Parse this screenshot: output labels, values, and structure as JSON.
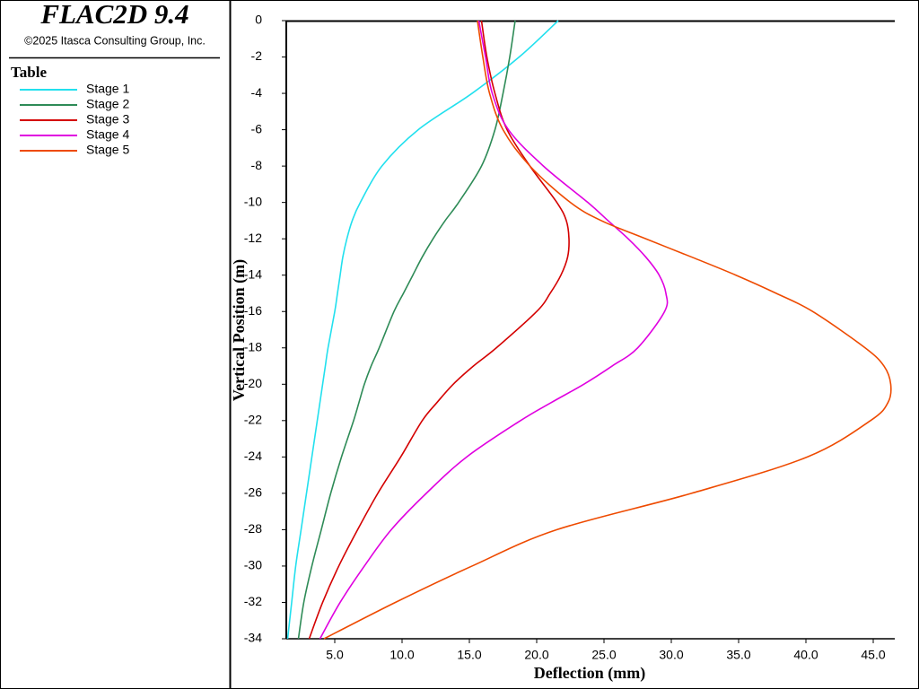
{
  "chart_data": {
    "type": "line",
    "title": "FLAC2D 9.4",
    "subtitle": "©2025 Itasca Consulting Group, Inc.",
    "legend_title": "Table",
    "x_label": "Deflection (mm)",
    "y_label": "Vertical Position (m)",
    "y": [
      0,
      -2,
      -4,
      -6,
      -8,
      -10,
      -11,
      -12,
      -13,
      -14,
      -15,
      -16,
      -18,
      -19,
      -20,
      -21,
      -22,
      -24,
      -26,
      -28,
      -30,
      -32,
      -34
    ],
    "series": [
      {
        "name": "Stage 1",
        "color": "#22e0ee",
        "values": [
          21.6,
          18.7,
          15.2,
          11.2,
          8.5,
          6.9,
          6.3,
          5.9,
          5.6,
          5.4,
          5.2,
          5.0,
          4.5,
          4.3,
          4.1,
          3.9,
          3.7,
          3.3,
          2.9,
          2.5,
          2.1,
          1.8,
          1.5
        ]
      },
      {
        "name": "Stage 2",
        "color": "#2e8b57",
        "values": [
          18.4,
          18.0,
          17.5,
          16.9,
          15.9,
          14.2,
          13.2,
          12.3,
          11.5,
          10.8,
          10.1,
          9.4,
          8.3,
          7.7,
          7.2,
          6.8,
          6.4,
          5.5,
          4.7,
          4.0,
          3.3,
          2.7,
          2.3
        ]
      },
      {
        "name": "Stage 3",
        "color": "#d40000",
        "values": [
          15.9,
          16.3,
          16.9,
          17.8,
          19.5,
          21.5,
          22.2,
          22.4,
          22.3,
          21.8,
          21.0,
          20.0,
          17.0,
          15.3,
          13.8,
          12.6,
          11.5,
          9.9,
          8.2,
          6.7,
          5.3,
          4.1,
          3.1
        ]
      },
      {
        "name": "Stage 4",
        "color": "#e000e0",
        "values": [
          15.7,
          16.2,
          16.7,
          17.9,
          20.5,
          23.8,
          25.3,
          26.8,
          28.1,
          29.1,
          29.6,
          29.5,
          27.5,
          25.6,
          23.5,
          21.1,
          18.8,
          14.8,
          11.8,
          9.2,
          7.2,
          5.4,
          3.9
        ]
      },
      {
        "name": "Stage 5",
        "color": "#ee4a00",
        "values": [
          15.6,
          16.0,
          16.5,
          17.5,
          19.5,
          22.5,
          24.8,
          28.1,
          31.5,
          34.8,
          37.8,
          40.5,
          44.4,
          45.8,
          46.3,
          46.1,
          44.8,
          40.1,
          31.5,
          21.5,
          15.2,
          9.5,
          4.2
        ]
      }
    ],
    "xlim": [
      1.4,
      46.6
    ],
    "ylim": [
      -34,
      0
    ],
    "xticks": [
      {
        "value": 5,
        "label": "5.0"
      },
      {
        "value": 10,
        "label": "10.0"
      },
      {
        "value": 15,
        "label": "15.0"
      },
      {
        "value": 20,
        "label": "20.0"
      },
      {
        "value": 25,
        "label": "25.0"
      },
      {
        "value": 30,
        "label": "30.0"
      },
      {
        "value": 35,
        "label": "35.0"
      },
      {
        "value": 40,
        "label": "40.0"
      },
      {
        "value": 45,
        "label": "45.0"
      }
    ],
    "yticks": [
      0,
      -2,
      -4,
      -6,
      -8,
      -10,
      -12,
      -14,
      -16,
      -18,
      -20,
      -22,
      -24,
      -26,
      -28,
      -30,
      -32,
      -34
    ],
    "grid": false
  }
}
